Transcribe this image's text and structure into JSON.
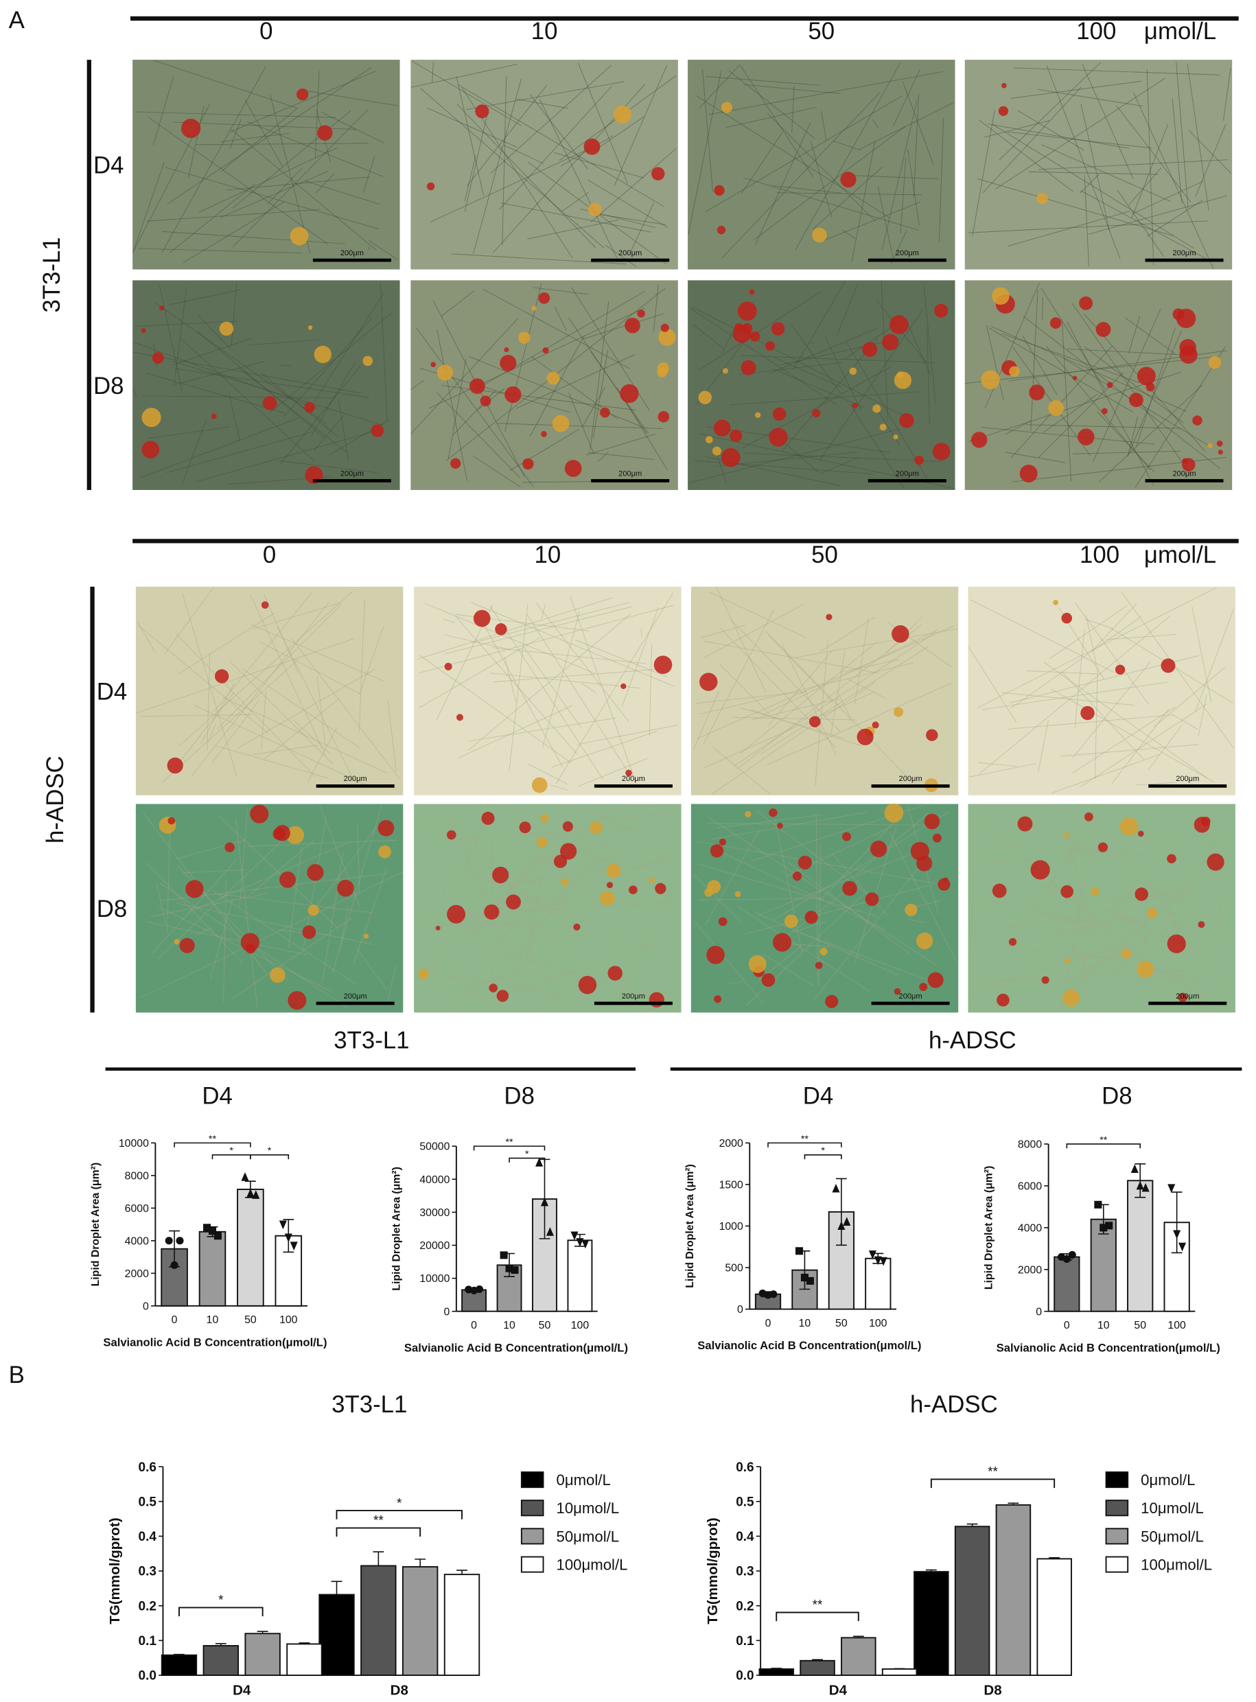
{
  "panel_a_label": "A",
  "panel_b_label": "B",
  "image_grids": [
    {
      "cell_line": "3T3-L1",
      "concentrations": [
        "0",
        "10",
        "50",
        "100"
      ],
      "unit": "μmol/L",
      "days": [
        "D4",
        "D8"
      ],
      "scale_bar": "200μm"
    },
    {
      "cell_line": "h-ADSC",
      "concentrations": [
        "0",
        "10",
        "50",
        "100"
      ],
      "unit": "μmol/L",
      "days": [
        "D4",
        "D8"
      ],
      "scale_bar": "200μm"
    }
  ],
  "quant_groups": [
    "3T3-L1",
    "h-ADSC"
  ],
  "chart_data": [
    {
      "type": "bar",
      "title": "D4",
      "ylabel": "Lipid Droplet Area (μm²)",
      "xlabel": "Salvianolic Acid B Concentration(μmol/L)",
      "categories": [
        "0",
        "10",
        "50",
        "100"
      ],
      "values": [
        3500,
        4550,
        7150,
        4300
      ],
      "errors": [
        1100,
        300,
        500,
        1000
      ],
      "points": [
        [
          4000,
          2500,
          4000
        ],
        [
          4800,
          4600,
          4300
        ],
        [
          7900,
          6900,
          6800
        ],
        [
          5000,
          4200,
          3700
        ]
      ],
      "colors": [
        "#6e6e6e",
        "#9a9a9a",
        "#d6d6d6",
        "#ffffff"
      ],
      "ylim": [
        0,
        10000
      ],
      "yticks": [
        0,
        2000,
        4000,
        6000,
        8000,
        10000
      ],
      "annotations": [
        {
          "label": "**",
          "from": "0",
          "to": "50"
        },
        {
          "label": "*",
          "from": "10",
          "to": "50"
        },
        {
          "label": "*",
          "from": "50",
          "to": "100"
        }
      ]
    },
    {
      "type": "bar",
      "title": "D8",
      "ylabel": "Lipid Droplet Area (μm²)",
      "xlabel": "Salvianolic Acid B Concentration(μmol/L)",
      "categories": [
        "0",
        "10",
        "50",
        "100"
      ],
      "values": [
        6500,
        14000,
        34000,
        21500
      ],
      "errors": [
        500,
        3500,
        12000,
        1800
      ],
      "points": [
        [
          6600,
          6300,
          6700
        ],
        [
          17000,
          13000,
          12500
        ],
        [
          45000,
          33000,
          24000
        ],
        [
          23000,
          21000,
          20500
        ]
      ],
      "colors": [
        "#6e6e6e",
        "#9a9a9a",
        "#d6d6d6",
        "#ffffff"
      ],
      "ylim": [
        0,
        50000
      ],
      "yticks": [
        0,
        10000,
        20000,
        30000,
        40000,
        50000
      ],
      "annotations": [
        {
          "label": "**",
          "from": "0",
          "to": "50"
        },
        {
          "label": "*",
          "from": "10",
          "to": "50"
        }
      ]
    },
    {
      "type": "bar",
      "title": "D4",
      "ylabel": "Lipid Droplet Area (μm²)",
      "xlabel": "Salvianolic Acid B Concentration(μmol/L)",
      "categories": [
        "0",
        "10",
        "50",
        "100"
      ],
      "values": [
        180,
        470,
        1170,
        610
      ],
      "errors": [
        30,
        230,
        400,
        60
      ],
      "points": [
        [
          190,
          170,
          180
        ],
        [
          700,
          380,
          340
        ],
        [
          1450,
          1000,
          1050
        ],
        [
          660,
          590,
          580
        ]
      ],
      "colors": [
        "#6e6e6e",
        "#9a9a9a",
        "#d6d6d6",
        "#ffffff"
      ],
      "ylim": [
        0,
        2000
      ],
      "yticks": [
        0,
        500,
        1000,
        1500,
        2000
      ],
      "annotations": [
        {
          "label": "**",
          "from": "0",
          "to": "50"
        },
        {
          "label": "*",
          "from": "10",
          "to": "50"
        }
      ]
    },
    {
      "type": "bar",
      "title": "D8",
      "ylabel": "Lipid Droplet Area (μm²)",
      "xlabel": "Salvianolic Acid B Concentration(μmol/L)",
      "categories": [
        "0",
        "10",
        "50",
        "100"
      ],
      "values": [
        2600,
        4400,
        6250,
        4250
      ],
      "errors": [
        150,
        700,
        800,
        1450
      ],
      "points": [
        [
          2600,
          2500,
          2700
        ],
        [
          5100,
          4000,
          4100
        ],
        [
          6800,
          6000,
          5900
        ],
        [
          5900,
          3700,
          3100
        ]
      ],
      "colors": [
        "#6e6e6e",
        "#9a9a9a",
        "#d6d6d6",
        "#ffffff"
      ],
      "ylim": [
        0,
        8000
      ],
      "yticks": [
        0,
        2000,
        4000,
        6000,
        8000
      ],
      "annotations": [
        {
          "label": "**",
          "from": "0",
          "to": "50"
        }
      ]
    },
    {
      "type": "grouped_bar",
      "title": "3T3-L1",
      "ylabel": "TG(mmol/gprot)",
      "categories": [
        "D4",
        "D8"
      ],
      "series": [
        {
          "name": "0μmol/L",
          "color": "#000000",
          "values": [
            0.058,
            0.232
          ],
          "errors": [
            0.002,
            0.038
          ]
        },
        {
          "name": "10μmol/L",
          "color": "#555555",
          "values": [
            0.085,
            0.315
          ],
          "errors": [
            0.006,
            0.04
          ]
        },
        {
          "name": "50μmol/L",
          "color": "#999999",
          "values": [
            0.12,
            0.312
          ],
          "errors": [
            0.006,
            0.022
          ]
        },
        {
          "name": "100μmol/L",
          "color": "#ffffff",
          "values": [
            0.09,
            0.29
          ],
          "errors": [
            0.003,
            0.012
          ]
        }
      ],
      "ylim": [
        0,
        0.6
      ],
      "yticks": [
        {
          "value": 0,
          "label": "0.0"
        },
        0.1,
        0.2,
        0.3,
        0.4,
        0.5,
        0.6
      ],
      "annotations": [
        {
          "label": "*",
          "category": "D4",
          "from": "0μmol/L",
          "to": "50μmol/L"
        },
        {
          "label": "**",
          "category": "D8",
          "from": "0μmol/L",
          "to": "50μmol/L"
        },
        {
          "label": "*",
          "category": "D8",
          "from": "0μmol/L",
          "to": "100μmol/L"
        }
      ]
    },
    {
      "type": "grouped_bar",
      "title": "h-ADSC",
      "ylabel": "TG(mmol/gprot)",
      "categories": [
        "D4",
        "D8"
      ],
      "series": [
        {
          "name": "0μmol/L",
          "color": "#000000",
          "values": [
            0.018,
            0.298
          ],
          "errors": [
            0.002,
            0.005
          ]
        },
        {
          "name": "10μmol/L",
          "color": "#555555",
          "values": [
            0.042,
            0.428
          ],
          "errors": [
            0.003,
            0.007
          ]
        },
        {
          "name": "50μmol/L",
          "color": "#999999",
          "values": [
            0.108,
            0.49
          ],
          "errors": [
            0.004,
            0.005
          ]
        },
        {
          "name": "100μmol/L",
          "color": "#ffffff",
          "values": [
            0.018,
            0.335
          ],
          "errors": [
            0.001,
            0.003
          ]
        }
      ],
      "ylim": [
        0,
        0.6
      ],
      "yticks": [
        {
          "value": 0,
          "label": "0.0"
        },
        0.1,
        0.2,
        0.3,
        0.4,
        0.5,
        0.6
      ],
      "annotations": [
        {
          "label": "**",
          "category": "D4",
          "from": "0μmol/L",
          "to": "50μmol/L"
        },
        {
          "label": "**",
          "category": "D8",
          "from": "0μmol/L",
          "to": "100μmol/L"
        }
      ]
    }
  ]
}
